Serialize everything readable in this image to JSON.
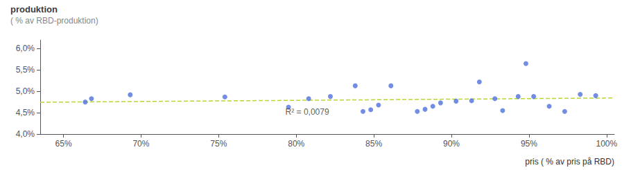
{
  "chart_data": {
    "type": "scatter",
    "title": "produktion",
    "subtitle": "( % av RBD-produktion)",
    "xlabel": "pris ( % av pris på RBD)",
    "x": [
      0.664,
      0.668,
      0.693,
      0.754,
      0.795,
      0.808,
      0.822,
      0.838,
      0.843,
      0.848,
      0.853,
      0.861,
      0.878,
      0.883,
      0.888,
      0.893,
      0.903,
      0.913,
      0.918,
      0.928,
      0.933,
      0.943,
      0.948,
      0.953,
      0.963,
      0.973,
      0.983,
      0.993
    ],
    "values": [
      0.0475,
      0.0483,
      0.0492,
      0.0487,
      0.0463,
      0.0483,
      0.0488,
      0.0513,
      0.0453,
      0.0457,
      0.0468,
      0.0513,
      0.0453,
      0.0458,
      0.0465,
      0.0473,
      0.0477,
      0.0478,
      0.0522,
      0.0483,
      0.0455,
      0.0488,
      0.0565,
      0.0488,
      0.0465,
      0.0453,
      0.0493,
      0.049
    ],
    "trendline": {
      "x": [
        0.635,
        1.005
      ],
      "values": [
        0.04745,
        0.04845
      ],
      "line_style": "dashed"
    },
    "annotations": [
      {
        "text": "R² = 0,0079",
        "x": 0.793,
        "y": 0.0452
      }
    ],
    "xlim": [
      0.635,
      1.005
    ],
    "ylim": [
      0.04,
      0.062
    ],
    "xticks": [
      {
        "value": 0.65,
        "label": "65%"
      },
      {
        "value": 0.7,
        "label": "70%"
      },
      {
        "value": 0.75,
        "label": "75%"
      },
      {
        "value": 0.8,
        "label": "80%"
      },
      {
        "value": 0.85,
        "label": "85%"
      },
      {
        "value": 0.9,
        "label": "90%"
      },
      {
        "value": 0.95,
        "label": "95%"
      },
      {
        "value": 1.0,
        "label": "100%"
      }
    ],
    "yticks": [
      {
        "value": 0.04,
        "label": "4,0%"
      },
      {
        "value": 0.045,
        "label": "4,5%"
      },
      {
        "value": 0.05,
        "label": "5,0%"
      },
      {
        "value": 0.055,
        "label": "5,5%"
      },
      {
        "value": 0.06,
        "label": "6,0%"
      }
    ],
    "grid": false
  }
}
